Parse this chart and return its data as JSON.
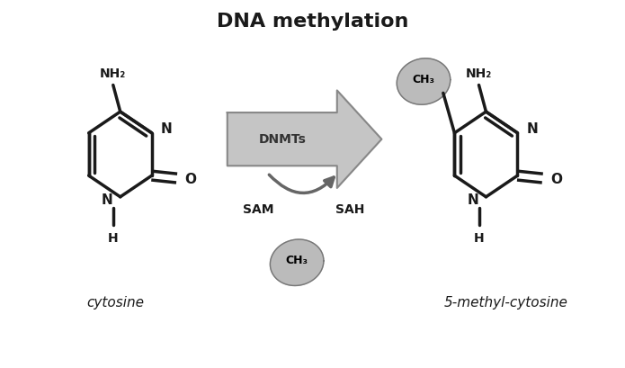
{
  "title": "DNA methylation",
  "title_fontsize": 16,
  "title_fontweight": "bold",
  "background_color": "#ffffff",
  "line_color": "#1a1a1a",
  "line_width": 2.5,
  "arrow_color": "#999999",
  "arrow_color_dark": "#777777",
  "blob_color": "#aaaaaa",
  "label_cytosine": "cytosine",
  "label_5mc": "5-methyl-cytosine",
  "label_dnmts": "DNMTs",
  "label_sam": "SAM",
  "label_sah": "SAH",
  "label_ch3": "CH₃",
  "label_nh2": "NH₂",
  "label_n": "N",
  "label_o": "O",
  "label_nh": "N",
  "label_h": "H",
  "figsize": [
    6.95,
    4.1
  ],
  "dpi": 100
}
